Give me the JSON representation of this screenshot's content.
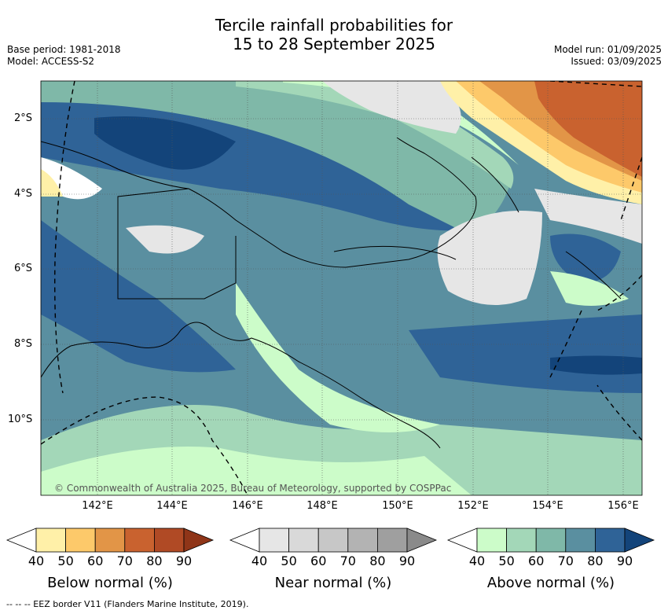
{
  "header": {
    "title_line1": "Tercile rainfall probabilities for",
    "title_line2": "15 to 28 September 2025",
    "base_period": "Base period: 1981-2018",
    "model": "Model: ACCESS-S2",
    "model_run": "Model run: 01/09/2025",
    "issued": "Issued: 03/09/2025"
  },
  "map": {
    "lat_labels": [
      "2°S",
      "4°S",
      "6°S",
      "8°S",
      "10°S"
    ],
    "lon_labels": [
      "142°E",
      "144°E",
      "146°E",
      "148°E",
      "150°E",
      "152°E",
      "154°E",
      "156°E"
    ],
    "copyright": "© Commonwealth of Australia 2025, Bureau of Meteorology, supported by COSPPac"
  },
  "colorbars": [
    {
      "name": "below-normal",
      "label": "Below normal (%)",
      "ticks": [
        "40",
        "50",
        "60",
        "70",
        "80",
        "90"
      ],
      "colors": [
        "#fff0a8",
        "#fdc96a",
        "#e29547",
        "#c9622f",
        "#b04a25",
        "#8f3518"
      ]
    },
    {
      "name": "near-normal",
      "label": "Near normal (%)",
      "ticks": [
        "40",
        "50",
        "60",
        "70",
        "80",
        "90"
      ],
      "colors": [
        "#e6e6e6",
        "#d9d9d9",
        "#c7c7c7",
        "#b3b3b3",
        "#9f9f9f",
        "#8a8a8a"
      ]
    },
    {
      "name": "above-normal",
      "label": "Above normal (%)",
      "ticks": [
        "40",
        "50",
        "60",
        "70",
        "80",
        "90"
      ],
      "colors": [
        "#ccfcc9",
        "#a3d7b8",
        "#7fb8a8",
        "#5a8fa0",
        "#2f6397",
        "#13447a"
      ]
    }
  ],
  "footer": {
    "eez_note": "--  --  -- EEZ border V11 (Flanders Marine Institute, 2019)."
  }
}
